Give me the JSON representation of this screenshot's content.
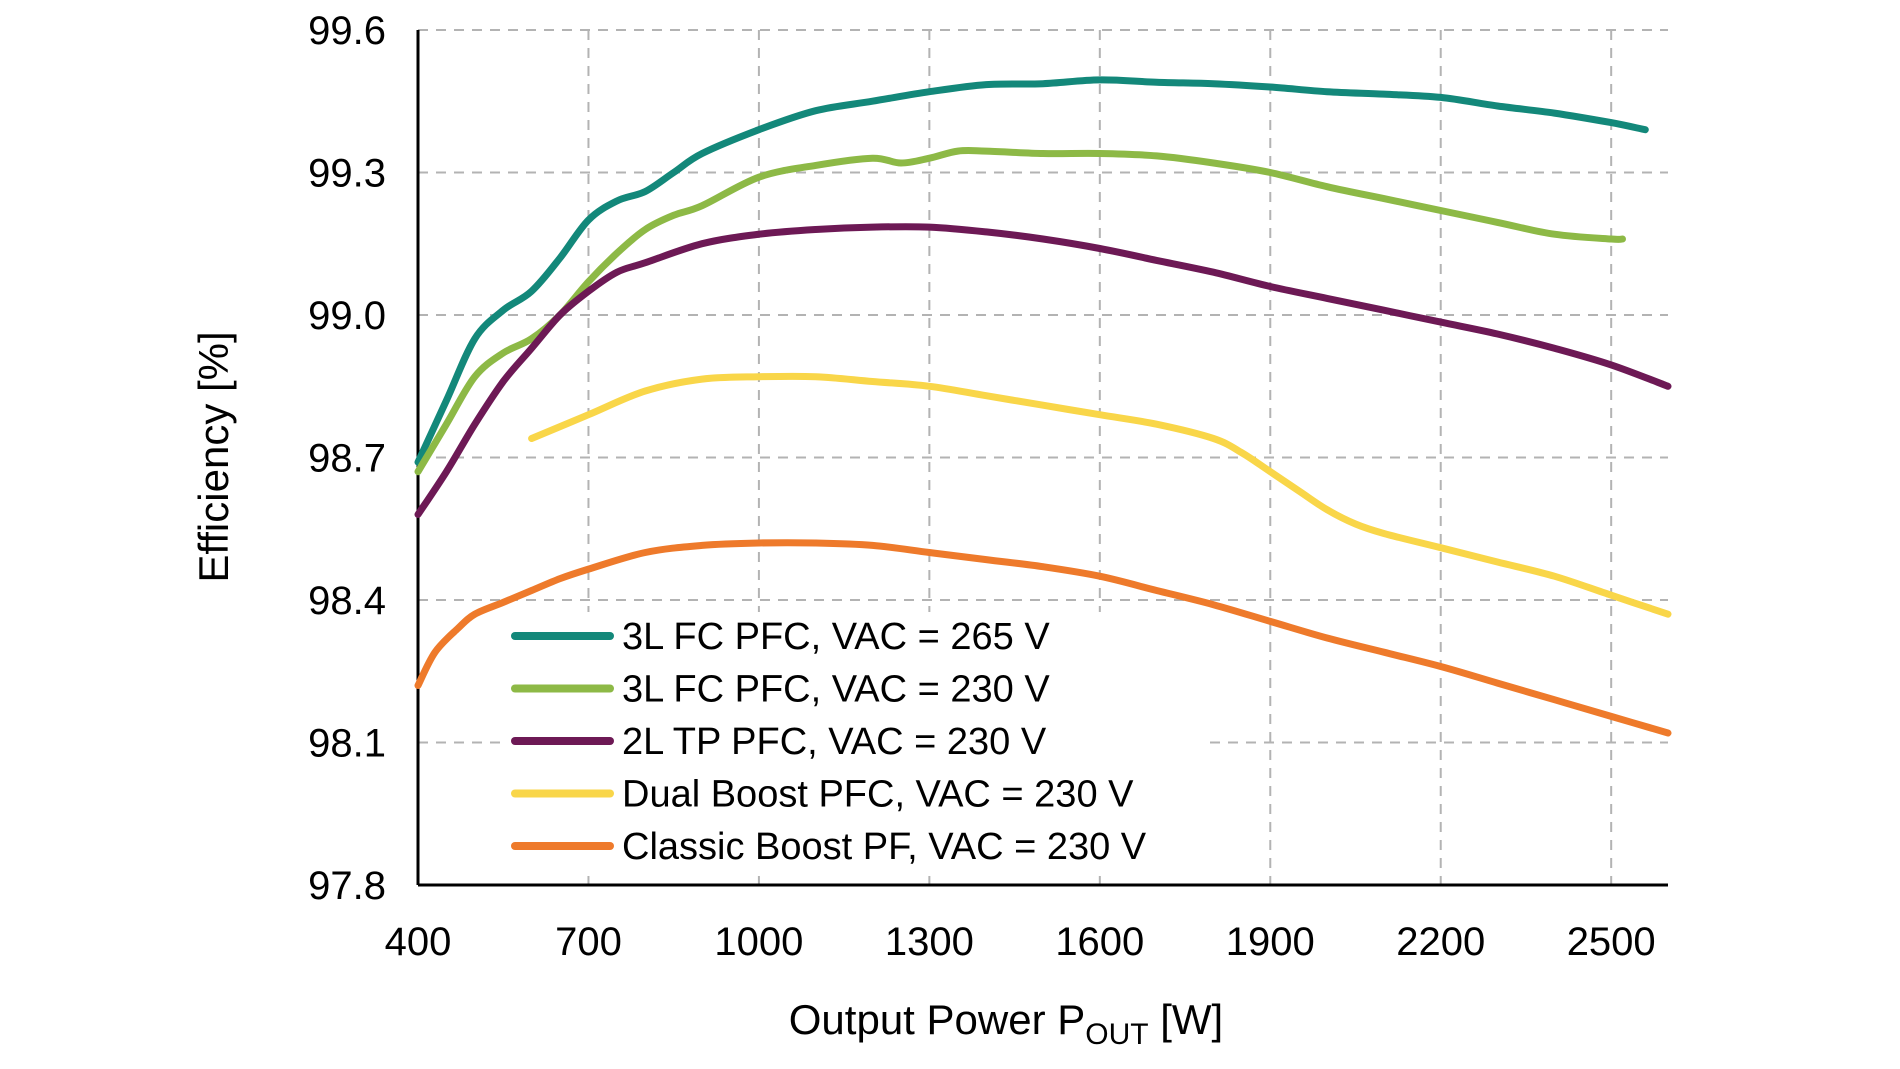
{
  "chart_data": {
    "type": "line",
    "title": "",
    "xlabel": "Output Power P",
    "xlabel_sub": "OUT",
    "xlabel_unit": " [W]",
    "ylabel": "Efficiency [%]",
    "xlim": [
      400,
      2600
    ],
    "ylim": [
      97.8,
      99.6
    ],
    "xticks": [
      400,
      700,
      1000,
      1300,
      1600,
      1900,
      2200,
      2500
    ],
    "xtick_labels": [
      "400",
      "700",
      "1000",
      "1300",
      "1600",
      "1900",
      "2200",
      "2500"
    ],
    "yticks": [
      97.8,
      98.1,
      98.4,
      98.7,
      99.0,
      99.3,
      99.6
    ],
    "ytick_labels": [
      "97.8",
      "98.1",
      "98.4",
      "98.7",
      "99.0",
      "99.3",
      "99.6"
    ],
    "grid": true,
    "legend_position": "bottom-left",
    "series": [
      {
        "name": "3L FC PFC, VAC = 265 V",
        "color": "#13887a",
        "x": [
          400,
          450,
          500,
          550,
          600,
          650,
          700,
          750,
          800,
          850,
          900,
          1000,
          1100,
          1200,
          1300,
          1400,
          1500,
          1600,
          1700,
          1800,
          1900,
          2000,
          2100,
          2200,
          2300,
          2400,
          2500,
          2560
        ],
        "y": [
          98.69,
          98.82,
          98.95,
          99.01,
          99.05,
          99.12,
          99.2,
          99.24,
          99.26,
          99.3,
          99.34,
          99.39,
          99.43,
          99.45,
          99.47,
          99.485,
          99.487,
          99.495,
          99.49,
          99.487,
          99.48,
          99.47,
          99.465,
          99.458,
          99.44,
          99.425,
          99.405,
          99.39
        ]
      },
      {
        "name": "3L FC PFC, VAC = 230 V",
        "color": "#8db946",
        "x": [
          400,
          450,
          500,
          550,
          600,
          650,
          700,
          750,
          800,
          850,
          900,
          1000,
          1100,
          1200,
          1250,
          1300,
          1350,
          1400,
          1500,
          1600,
          1700,
          1800,
          1900,
          2000,
          2100,
          2200,
          2300,
          2400,
          2500,
          2520
        ],
        "y": [
          98.67,
          98.77,
          98.87,
          98.92,
          98.95,
          99.0,
          99.07,
          99.13,
          99.18,
          99.21,
          99.23,
          99.29,
          99.315,
          99.33,
          99.32,
          99.33,
          99.345,
          99.345,
          99.34,
          99.34,
          99.335,
          99.32,
          99.3,
          99.27,
          99.245,
          99.22,
          99.195,
          99.17,
          99.16,
          99.16
        ]
      },
      {
        "name": "2L TP PFC, VAC = 230 V",
        "color": "#6d1955",
        "x": [
          400,
          450,
          500,
          550,
          600,
          650,
          700,
          750,
          800,
          900,
          1000,
          1100,
          1200,
          1300,
          1400,
          1500,
          1600,
          1700,
          1800,
          1900,
          2000,
          2100,
          2200,
          2300,
          2400,
          2500,
          2600
        ],
        "y": [
          98.58,
          98.67,
          98.77,
          98.86,
          98.93,
          99.0,
          99.05,
          99.09,
          99.11,
          99.15,
          99.17,
          99.18,
          99.185,
          99.185,
          99.175,
          99.16,
          99.14,
          99.115,
          99.09,
          99.06,
          99.035,
          99.01,
          98.985,
          98.96,
          98.93,
          98.895,
          98.85
        ]
      },
      {
        "name": "Dual Boost PFC, VAC = 230 V",
        "color": "#f9d649",
        "x": [
          600,
          700,
          800,
          900,
          1000,
          1100,
          1200,
          1300,
          1400,
          1500,
          1600,
          1700,
          1800,
          1850,
          1900,
          1950,
          2000,
          2050,
          2100,
          2200,
          2300,
          2400,
          2500,
          2600
        ],
        "y": [
          98.74,
          98.79,
          98.84,
          98.865,
          98.87,
          98.87,
          98.86,
          98.85,
          98.83,
          98.81,
          98.79,
          98.77,
          98.74,
          98.71,
          98.67,
          98.63,
          98.59,
          98.56,
          98.54,
          98.51,
          98.48,
          98.45,
          98.41,
          98.37
        ]
      },
      {
        "name": "Classic Boost PF, VAC = 230 V",
        "color": "#ee7a2b",
        "x": [
          400,
          430,
          470,
          500,
          550,
          600,
          650,
          700,
          800,
          900,
          1000,
          1100,
          1200,
          1300,
          1400,
          1500,
          1600,
          1700,
          1800,
          1900,
          2000,
          2100,
          2200,
          2300,
          2400,
          2500,
          2600
        ],
        "y": [
          98.22,
          98.29,
          98.34,
          98.37,
          98.395,
          98.42,
          98.445,
          98.465,
          98.5,
          98.515,
          98.52,
          98.52,
          98.515,
          98.5,
          98.485,
          98.47,
          98.45,
          98.42,
          98.39,
          98.355,
          98.32,
          98.29,
          98.26,
          98.225,
          98.19,
          98.155,
          98.12
        ]
      }
    ]
  }
}
